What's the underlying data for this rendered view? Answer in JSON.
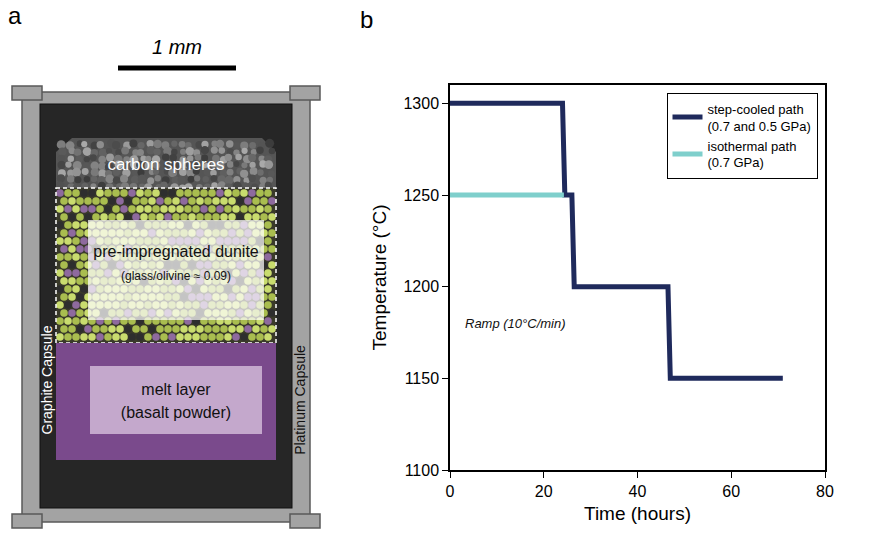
{
  "panel_a": {
    "letter": "a",
    "scale_bar": "1 mm",
    "labels": {
      "top_layer": "carbon spheres",
      "middle_layer": "pre-impregnated dunite",
      "middle_layer_note": "(glass/olivine ≈ 0.09)",
      "bottom_layer": "melt layer",
      "bottom_layer_note": "(basalt powder)",
      "inner_capsule": "Graphite Capsule",
      "outer_capsule": "Platinum Capsule"
    }
  },
  "chart_data": {
    "type": "line",
    "panel_label": "b",
    "x_label": "Time (hours)",
    "y_label": "Temperature (°C)",
    "xlim": [
      0,
      80
    ],
    "ylim": [
      1100,
      1310
    ],
    "xticks": [
      0,
      20,
      40,
      60,
      80
    ],
    "yticks": [
      1100,
      1150,
      1200,
      1250,
      1300
    ],
    "legend": "upper right",
    "series": [
      {
        "name": "step-cooled path (0.7 and 0.5 GPa)",
        "color": "#1f2a5c",
        "x": [
          0,
          24,
          24.5,
          26,
          26.5,
          46.5,
          47,
          71
        ],
        "values": [
          1300,
          1300,
          1250,
          1250,
          1200,
          1200,
          1150,
          1150
        ]
      },
      {
        "name": "isothermal path (0.7 GPa)",
        "color": "#7fcfcc",
        "x": [
          0,
          24.3
        ],
        "values": [
          1250,
          1250
        ]
      }
    ],
    "annotations": [
      {
        "text": "Ramp (10°C/min)",
        "x": 14,
        "y": 1180
      }
    ]
  }
}
